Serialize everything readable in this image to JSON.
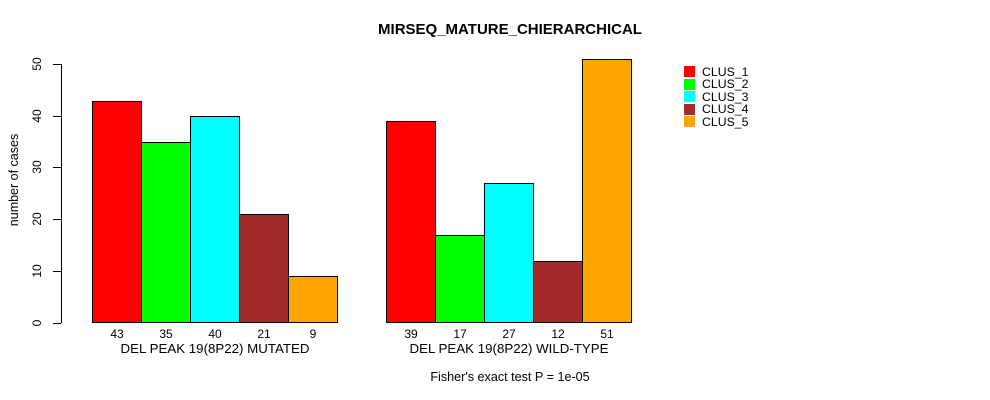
{
  "chart_data": {
    "type": "bar",
    "title": "MIRSEQ_MATURE_CHIERARCHICAL",
    "ylabel": "number of cases",
    "xlabel": "",
    "ylim": [
      0,
      50
    ],
    "yticks": [
      0,
      10,
      20,
      30,
      40,
      50
    ],
    "grid": false,
    "legend_position": "top-right",
    "bar_border_color": "#000000",
    "background_color": "#ffffff",
    "categories": [
      "DEL PEAK 19(8P22) MUTATED",
      "DEL PEAK 19(8P22) WILD-TYPE"
    ],
    "series": [
      {
        "name": "CLUS_1",
        "color": "#FF0000",
        "values": [
          43,
          39
        ]
      },
      {
        "name": "CLUS_2",
        "color": "#00FF00",
        "values": [
          35,
          17
        ]
      },
      {
        "name": "CLUS_3",
        "color": "#00FFFF",
        "values": [
          40,
          27
        ]
      },
      {
        "name": "CLUS_4",
        "color": "#A52A2A",
        "values": [
          21,
          12
        ]
      },
      {
        "name": "CLUS_5",
        "color": "#FFA500",
        "values": [
          9,
          51
        ]
      }
    ],
    "value_labels_shown": true,
    "annotation": "Fisher's exact test P = 1e-05"
  }
}
